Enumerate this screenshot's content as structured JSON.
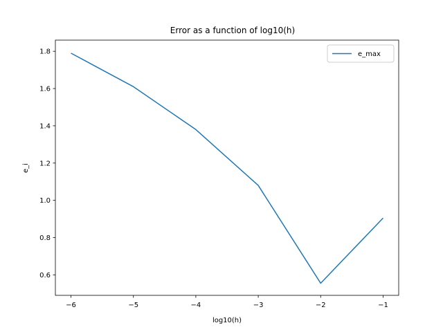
{
  "chart_data": {
    "type": "line",
    "title": "Error as a function of log10(h)",
    "xlabel": "log10(h)",
    "ylabel": "e_i",
    "x": [
      -6,
      -5,
      -4,
      -3,
      -2,
      -1
    ],
    "series": [
      {
        "name": "e_max",
        "values": [
          1.79,
          1.61,
          1.38,
          1.08,
          0.555,
          0.905
        ],
        "color": "#1f77b4"
      }
    ],
    "xlim": [
      -6.25,
      -0.75
    ],
    "ylim": [
      0.49,
      1.86
    ],
    "xticks": [
      -6,
      -5,
      -4,
      -3,
      -2,
      -1
    ],
    "xtick_labels": [
      "−6",
      "−5",
      "−4",
      "−3",
      "−2",
      "−1"
    ],
    "yticks": [
      0.6,
      0.8,
      1.0,
      1.2,
      1.4,
      1.6,
      1.8
    ],
    "ytick_labels": [
      "0.6",
      "0.8",
      "1.0",
      "1.2",
      "1.4",
      "1.6",
      "1.8"
    ],
    "grid": false,
    "legend": "top-right"
  }
}
